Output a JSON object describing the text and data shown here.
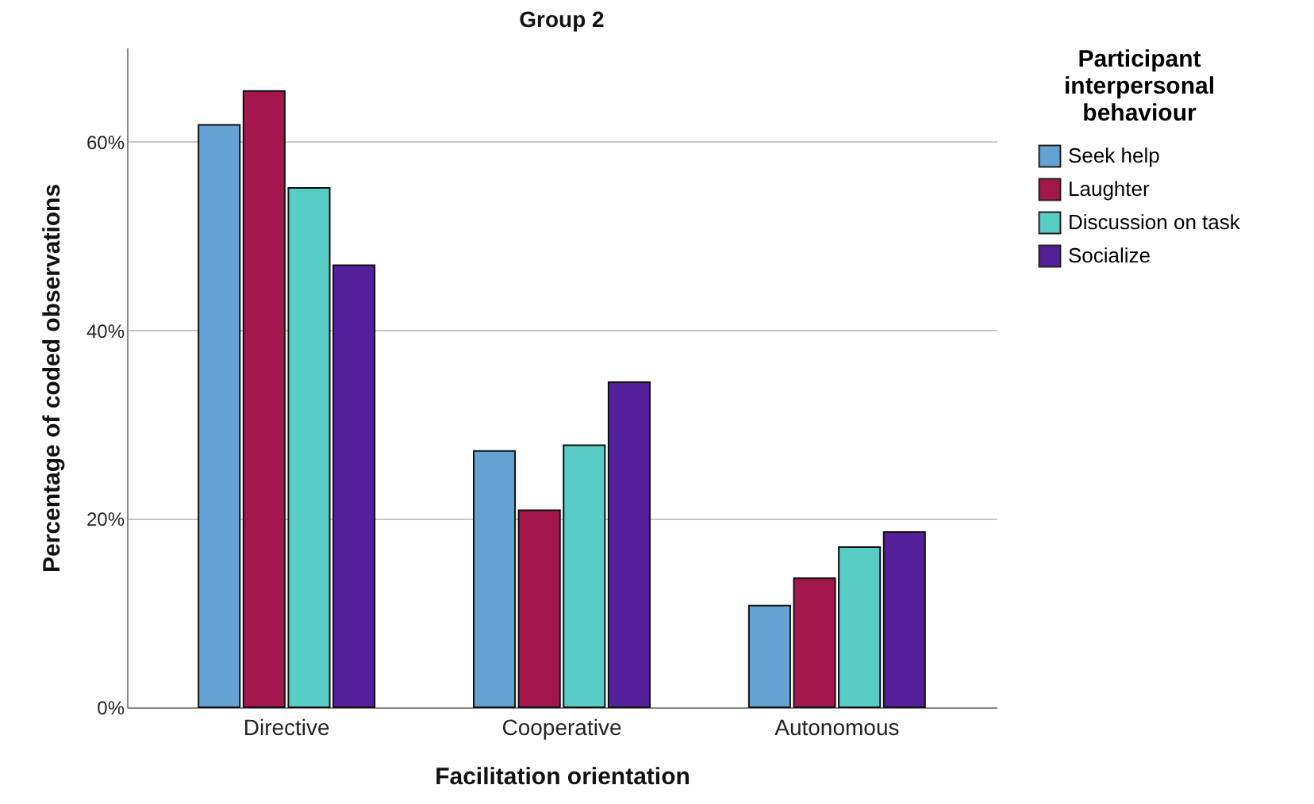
{
  "chart_data": {
    "type": "bar",
    "title": "Group 2",
    "xlabel": "Facilitation orientation",
    "ylabel": "Percentage of coded observations",
    "legend_title": "Participant interpersonal behaviour",
    "categories": [
      "Directive",
      "Cooperative",
      "Autonomous"
    ],
    "series": [
      {
        "name": "Seek help",
        "color": "#64a2d3",
        "values": [
          61.8,
          27.2,
          10.8
        ]
      },
      {
        "name": "Laughter",
        "color": "#a3174c",
        "values": [
          65.4,
          20.9,
          13.7
        ]
      },
      {
        "name": "Discussion on task",
        "color": "#58cdc6",
        "values": [
          55.1,
          27.8,
          17.0
        ]
      },
      {
        "name": "Socialize",
        "color": "#542099",
        "values": [
          46.9,
          34.5,
          18.6
        ]
      }
    ],
    "ylim": [
      0,
      70
    ],
    "yticks": [
      {
        "value": 0,
        "label": "0%"
      },
      {
        "value": 20,
        "label": "20%"
      },
      {
        "value": 40,
        "label": "40%"
      },
      {
        "value": 60,
        "label": "60%"
      }
    ],
    "grid": "y",
    "legend": "top right"
  }
}
